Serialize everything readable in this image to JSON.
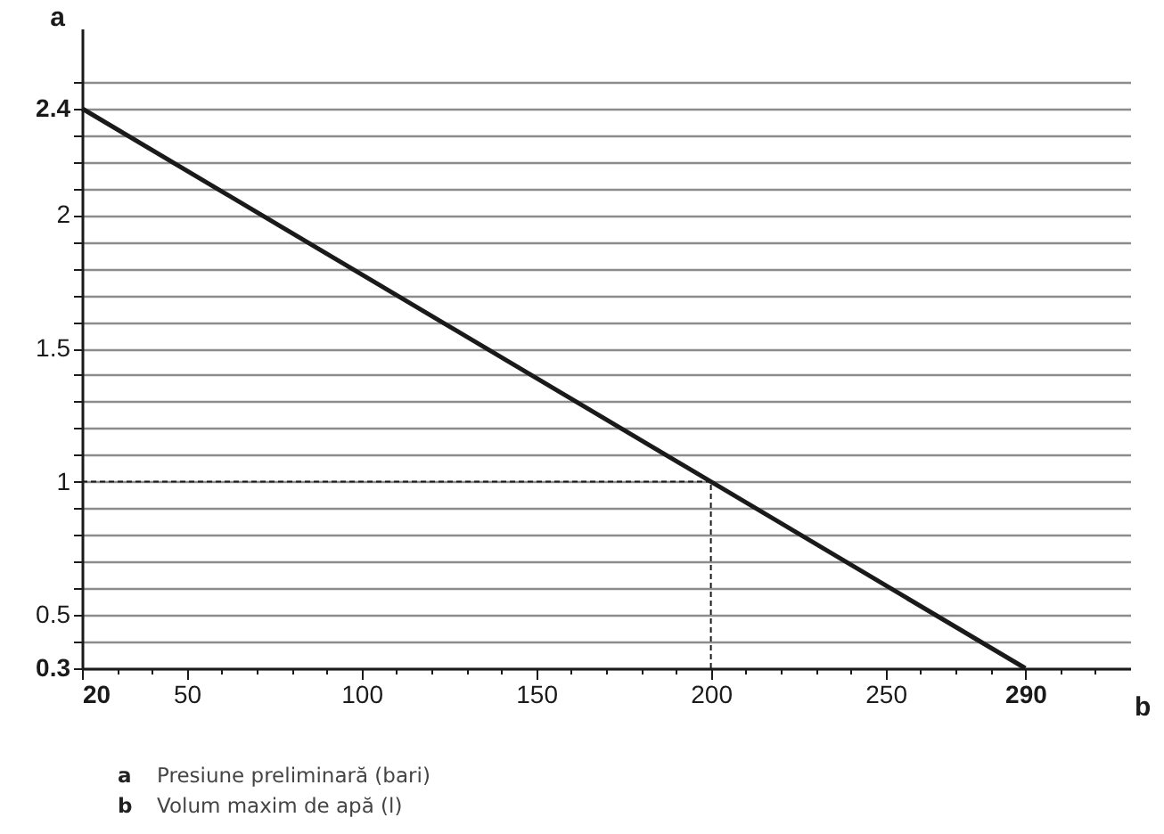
{
  "chart_data": {
    "type": "line",
    "xlabel": "b",
    "ylabel": "a",
    "x": [
      20,
      290
    ],
    "series": [
      {
        "color": "#1a1a1a",
        "values": [
          2.4,
          0.3
        ]
      }
    ],
    "xlim": [
      20,
      320
    ],
    "xticks": [
      20,
      {
        "value": 30,
        "label": null
      },
      {
        "value": 40,
        "label": null
      },
      50,
      {
        "value": 60,
        "label": null
      },
      {
        "value": 70,
        "label": null
      },
      {
        "value": 80,
        "label": null
      },
      {
        "value": 90,
        "label": null
      },
      100,
      {
        "value": 110,
        "label": null
      },
      {
        "value": 120,
        "label": null
      },
      {
        "value": 130,
        "label": null
      },
      {
        "value": 140,
        "label": null
      },
      150,
      {
        "value": 160,
        "label": null
      },
      {
        "value": 170,
        "label": null
      },
      {
        "value": 180,
        "label": null
      },
      {
        "value": 190,
        "label": null
      },
      200,
      {
        "value": 210,
        "label": null
      },
      {
        "value": 220,
        "label": null
      },
      {
        "value": 230,
        "label": null
      },
      {
        "value": 240,
        "label": null
      },
      250,
      {
        "value": 260,
        "label": null
      },
      {
        "value": 270,
        "label": null
      },
      {
        "value": 280,
        "label": null
      },
      290,
      {
        "value": 300,
        "label": null
      },
      {
        "value": 310,
        "label": null
      }
    ],
    "ylim": [
      0.3,
      2.7
    ],
    "yticks": [
      0.3,
      {
        "value": 0.4,
        "label": null
      },
      0.5,
      {
        "value": 0.6,
        "label": null
      },
      {
        "value": 0.7,
        "label": null
      },
      {
        "value": 0.8,
        "label": null
      },
      {
        "value": 0.9,
        "label": null
      },
      1,
      {
        "value": 1.1,
        "label": null
      },
      {
        "value": 1.2,
        "label": null
      },
      {
        "value": 1.3,
        "label": null
      },
      {
        "value": 1.4,
        "label": null
      },
      1.5,
      {
        "value": 1.6,
        "label": null
      },
      {
        "value": 1.7,
        "label": null
      },
      {
        "value": 1.8,
        "label": null
      },
      {
        "value": 1.9,
        "label": null
      },
      2,
      {
        "value": 2.1,
        "label": null
      },
      {
        "value": 2.2,
        "label": null
      },
      {
        "value": 2.3,
        "label": null
      },
      2.4,
      {
        "value": 2.5,
        "label": null
      }
    ],
    "grid": "y",
    "ref_lines": [
      {
        "axis": "x",
        "value": 200,
        "line_style": "dashed",
        "color": "#1a1a1a"
      },
      {
        "axis": "y",
        "value": 1,
        "line_style": "dashed",
        "color": "#1a1a1a"
      }
    ],
    "annotations": [
      "Presiune preliminară (bari)",
      "Volum maxim de apă (l)"
    ]
  }
}
